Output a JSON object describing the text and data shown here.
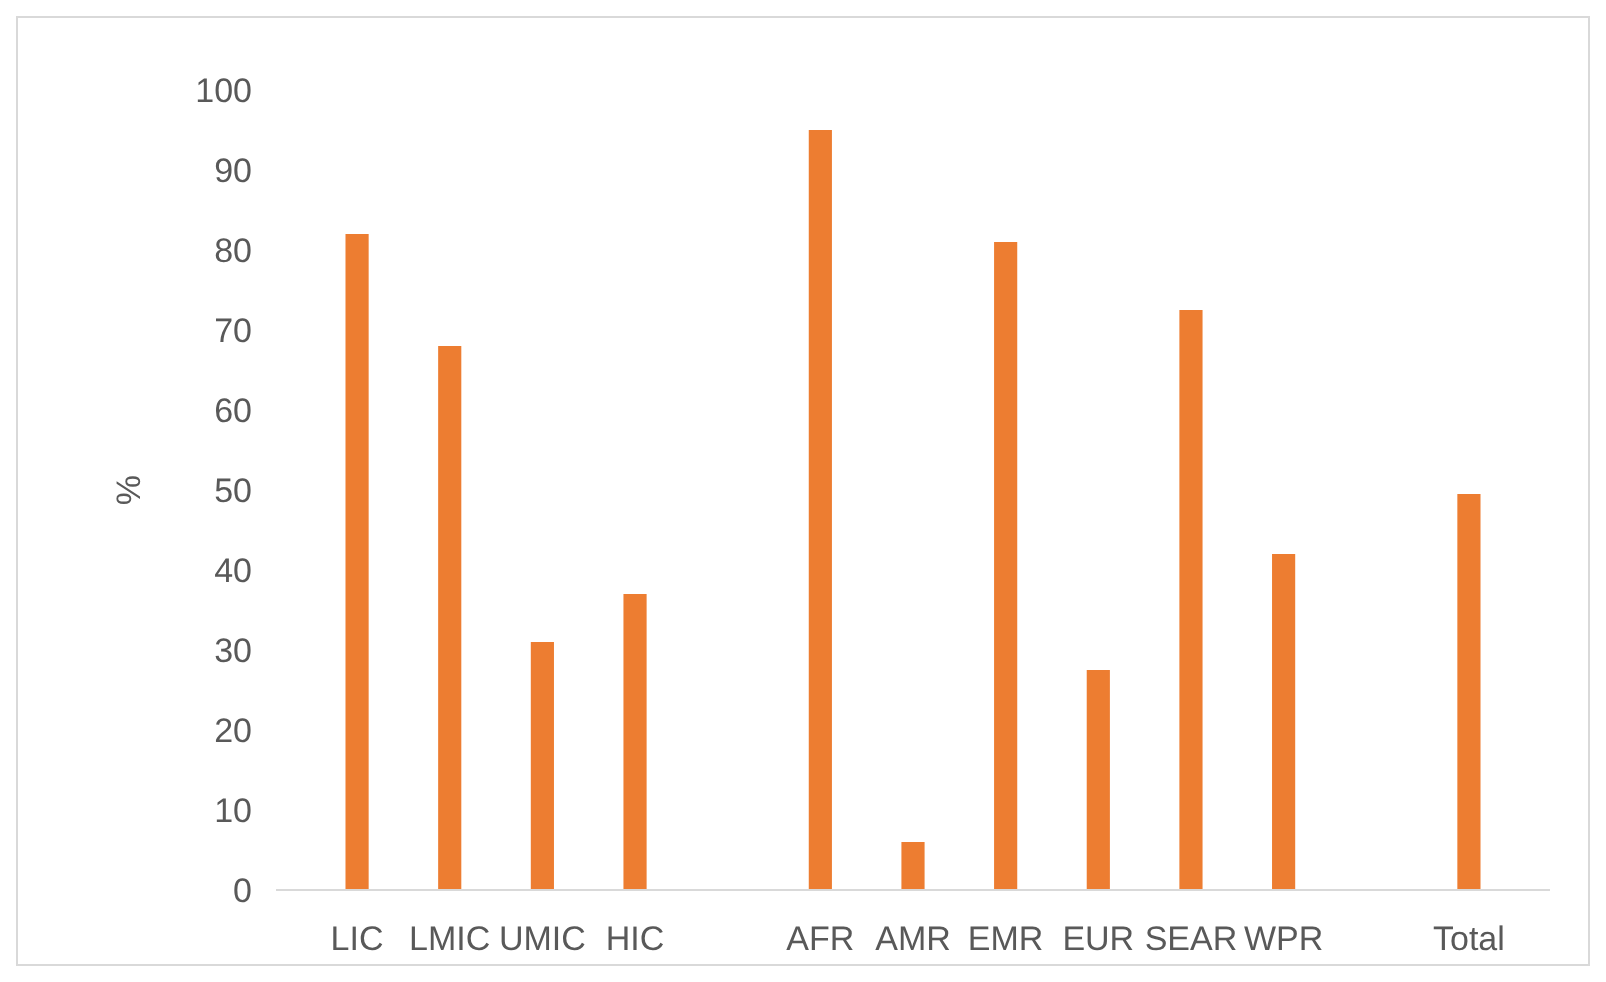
{
  "chart_data": {
    "type": "bar",
    "ylabel": "%",
    "categories": [
      "LIC",
      "LMIC",
      "UMIC",
      "HIC",
      null,
      "AFR",
      "AMR",
      "EMR",
      "EUR",
      "SEAR",
      "WPR",
      null,
      "Total"
    ],
    "values": [
      82,
      68,
      31,
      37,
      null,
      95,
      6,
      81,
      27.5,
      72.5,
      42,
      null,
      49.5
    ],
    "color": "#ed7d31",
    "ylim": [
      0,
      100
    ],
    "yticks": [
      0,
      10,
      20,
      30,
      40,
      50,
      60,
      70,
      80,
      90,
      100
    ],
    "grid": false
  }
}
